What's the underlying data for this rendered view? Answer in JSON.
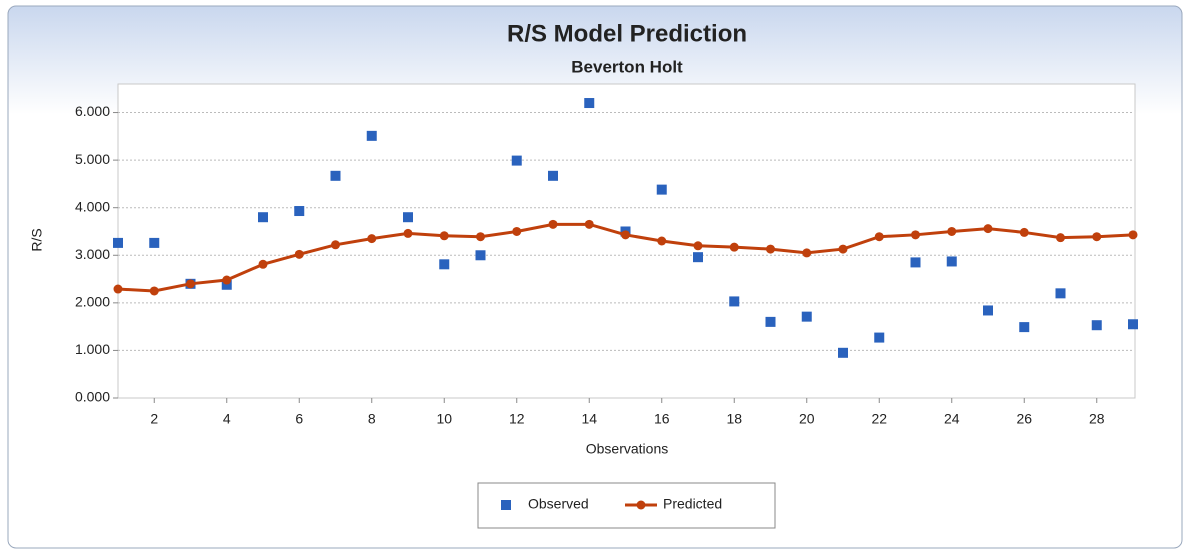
{
  "chart_data": {
    "type": "line",
    "title": "R/S Model Prediction",
    "subtitle": "Beverton Holt",
    "x_label": "Observations",
    "y_label": "R/S",
    "x": [
      1,
      2,
      3,
      4,
      5,
      6,
      7,
      8,
      9,
      10,
      11,
      12,
      13,
      14,
      15,
      16,
      17,
      18,
      19,
      20,
      21,
      22,
      23,
      24,
      25,
      26,
      27,
      28,
      29
    ],
    "xlim": [
      1,
      29
    ],
    "xticks": [
      2,
      4,
      6,
      8,
      10,
      12,
      14,
      16,
      18,
      20,
      22,
      24,
      26,
      28
    ],
    "ylim": [
      0,
      6.6
    ],
    "yticks": [
      {
        "value": 0,
        "label": "0.000"
      },
      {
        "value": 1,
        "label": "1.000"
      },
      {
        "value": 2,
        "label": "2.000"
      },
      {
        "value": 3,
        "label": "3.000"
      },
      {
        "value": 4,
        "label": "4.000"
      },
      {
        "value": 5,
        "label": "5.000"
      },
      {
        "value": 6,
        "label": "6.000"
      }
    ],
    "grid": true,
    "legend": "bottom",
    "series": [
      {
        "name": "Observed",
        "color": "#2a62bd",
        "mode": "markers",
        "values": [
          3.26,
          3.26,
          2.4,
          2.38,
          3.8,
          3.93,
          4.67,
          5.51,
          3.8,
          2.81,
          3.0,
          4.99,
          4.67,
          6.2,
          3.5,
          4.38,
          2.96,
          2.03,
          1.6,
          1.71,
          0.95,
          1.27,
          2.85,
          2.87,
          1.84,
          1.49,
          2.2,
          1.53,
          1.55
        ]
      },
      {
        "name": "Predicted",
        "color": "#c0400c",
        "mode": "line-markers",
        "values": [
          2.29,
          2.25,
          2.4,
          2.48,
          2.81,
          3.02,
          3.22,
          3.35,
          3.46,
          3.41,
          3.39,
          3.5,
          3.65,
          3.65,
          3.43,
          3.3,
          3.2,
          3.17,
          3.13,
          3.05,
          3.13,
          3.39,
          3.43,
          3.5,
          3.56,
          3.48,
          3.37,
          3.39,
          3.43
        ]
      }
    ]
  }
}
